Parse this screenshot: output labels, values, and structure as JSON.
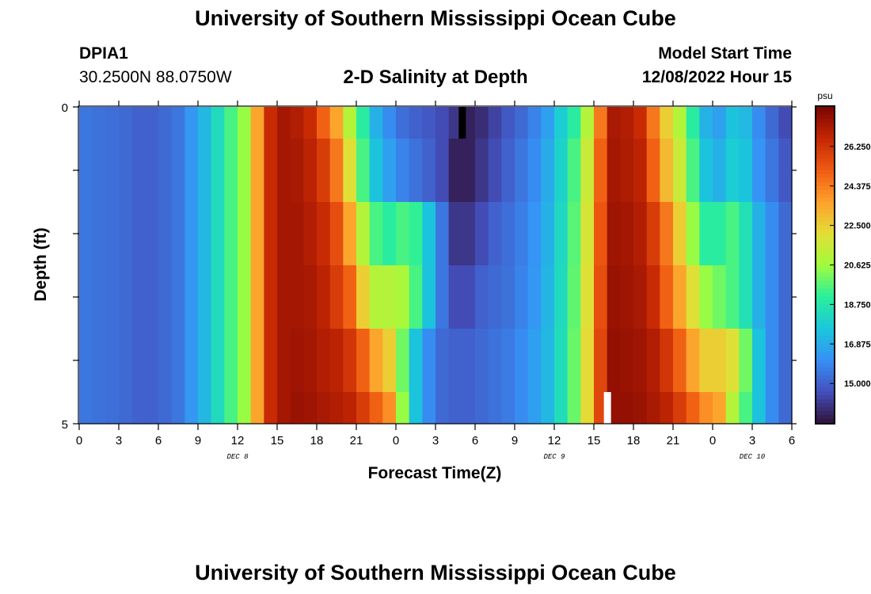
{
  "header": {
    "title": "University of Southern Mississippi Ocean Cube",
    "station": "DPIA1",
    "coords": "30.2500N  88.0750W",
    "subtitle": "2-D Salinity at Depth",
    "model_start_label": "Model Start Time",
    "model_start_value": "12/08/2022 Hour 15"
  },
  "footer": {
    "title": "University of Southern Mississippi Ocean Cube"
  },
  "chart_data": {
    "type": "heatmap",
    "title": "2-D Salinity at Depth",
    "xlabel": "Forecast Time(Z)",
    "ylabel": "Depth (ft)",
    "x_tick_labels": [
      "0",
      "3",
      "6",
      "9",
      "12",
      "15",
      "18",
      "21",
      "0",
      "3",
      "6",
      "9",
      "12",
      "15",
      "18",
      "21",
      "0",
      "3",
      "6"
    ],
    "x_range_hours": [
      0,
      54
    ],
    "day_labels": [
      {
        "label": "DEC 8",
        "hour": 12
      },
      {
        "label": "DEC 9",
        "hour": 36
      },
      {
        "label": "DEC 10",
        "hour": 51
      }
    ],
    "y_tick_labels": [
      "0",
      "5"
    ],
    "y_range": [
      0,
      5
    ],
    "colorbar": {
      "unit": "psu",
      "min": 13.125,
      "max": 28.125,
      "tick_labels": [
        "26.250",
        "24.375",
        "22.500",
        "20.625",
        "18.750",
        "16.875",
        "15.000"
      ],
      "tick_values": [
        26.25,
        24.375,
        22.5,
        20.625,
        18.75,
        16.875,
        15.0
      ]
    },
    "depth_rows": [
      {
        "depth_range": [
          0,
          0.5
        ],
        "values_by_hour": [
          15.5,
          15.4,
          15.3,
          15.2,
          15.0,
          15.0,
          15.2,
          15.5,
          16.3,
          17.2,
          18.3,
          19.5,
          20.5,
          23.5,
          26.5,
          27.3,
          27.0,
          26.5,
          25.0,
          23.5,
          21.0,
          19.0,
          17.0,
          16.0,
          15.3,
          15.0,
          14.8,
          14.5,
          14.0,
          13.5,
          13.8,
          14.3,
          14.8,
          15.2,
          15.8,
          16.5,
          17.8,
          19.0,
          21.0,
          24.5,
          27.2,
          27.0,
          26.5,
          24.5,
          22.5,
          21.0,
          19.0,
          17.0,
          16.5,
          17.5,
          17.2,
          16.0,
          15.2,
          14.5,
          14.0
        ]
      },
      {
        "depth_range": [
          0.5,
          1.5
        ],
        "values_by_hour": [
          15.5,
          15.4,
          15.3,
          15.2,
          15.0,
          15.0,
          15.2,
          15.5,
          16.3,
          17.2,
          18.3,
          19.5,
          20.5,
          23.5,
          26.5,
          27.3,
          27.2,
          26.8,
          26.0,
          24.5,
          22.0,
          19.5,
          17.5,
          16.5,
          15.8,
          15.4,
          15.0,
          14.5,
          13.5,
          13.5,
          14.0,
          14.5,
          15.0,
          15.5,
          16.0,
          16.8,
          18.0,
          19.5,
          21.5,
          25.0,
          27.3,
          27.1,
          26.8,
          25.0,
          23.0,
          21.5,
          19.5,
          17.5,
          17.0,
          17.8,
          17.5,
          16.2,
          15.5,
          14.8,
          14.2
        ]
      },
      {
        "depth_range": [
          1.5,
          2.5
        ],
        "values_by_hour": [
          15.5,
          15.4,
          15.3,
          15.2,
          15.0,
          15.0,
          15.2,
          15.5,
          16.3,
          17.2,
          18.3,
          19.5,
          20.5,
          23.5,
          26.5,
          27.3,
          27.3,
          27.0,
          26.5,
          25.5,
          23.5,
          21.0,
          19.5,
          19.0,
          19.5,
          19.2,
          17.5,
          15.5,
          14.0,
          14.0,
          14.5,
          15.0,
          15.3,
          15.7,
          16.2,
          17.0,
          18.2,
          19.7,
          21.8,
          25.3,
          27.4,
          27.3,
          27.0,
          26.0,
          24.5,
          22.5,
          20.5,
          19.0,
          19.0,
          19.5,
          18.5,
          17.0,
          16.0,
          15.2,
          14.5
        ]
      },
      {
        "depth_range": [
          2.5,
          3.5
        ],
        "values_by_hour": [
          15.5,
          15.4,
          15.3,
          15.2,
          15.0,
          15.0,
          15.2,
          15.5,
          16.3,
          17.2,
          18.3,
          19.5,
          20.5,
          23.5,
          26.5,
          27.3,
          27.3,
          27.2,
          26.8,
          26.0,
          25.0,
          22.5,
          21.0,
          21.0,
          20.8,
          19.5,
          17.5,
          15.5,
          14.5,
          14.5,
          15.0,
          15.2,
          15.4,
          15.8,
          16.3,
          17.1,
          18.3,
          19.8,
          22.0,
          25.5,
          27.5,
          27.4,
          27.2,
          26.5,
          25.0,
          23.5,
          22.0,
          20.5,
          20.0,
          19.5,
          18.5,
          17.0,
          16.0,
          15.2,
          14.8
        ]
      },
      {
        "depth_range": [
          3.5,
          4.5
        ],
        "values_by_hour": [
          15.5,
          15.4,
          15.3,
          15.2,
          15.0,
          15.0,
          15.2,
          15.5,
          16.3,
          17.2,
          18.3,
          19.5,
          20.5,
          23.5,
          26.5,
          27.3,
          27.4,
          27.3,
          27.0,
          26.8,
          26.2,
          25.0,
          23.5,
          22.5,
          20.0,
          17.5,
          16.0,
          15.2,
          15.0,
          15.0,
          15.2,
          15.4,
          15.6,
          16.0,
          16.5,
          17.2,
          18.4,
          19.9,
          22.2,
          25.7,
          27.6,
          27.5,
          27.4,
          27.0,
          26.2,
          25.0,
          23.5,
          22.5,
          22.5,
          22.0,
          20.0,
          17.5,
          16.0,
          15.2,
          14.8
        ]
      },
      {
        "depth_range": [
          4.5,
          5.0
        ],
        "values_by_hour": [
          15.5,
          15.4,
          15.3,
          15.2,
          15.0,
          15.0,
          15.2,
          15.5,
          16.3,
          17.2,
          18.3,
          19.5,
          20.5,
          23.5,
          26.5,
          27.3,
          27.5,
          27.4,
          27.2,
          27.0,
          26.8,
          26.0,
          25.0,
          24.0,
          20.5,
          17.5,
          16.0,
          15.2,
          15.0,
          15.0,
          15.2,
          15.4,
          15.6,
          16.0,
          16.5,
          17.2,
          18.4,
          19.9,
          22.2,
          25.7,
          27.6,
          27.6,
          27.5,
          27.2,
          26.8,
          26.0,
          25.0,
          24.0,
          23.5,
          21.0,
          19.5,
          17.5,
          16.0,
          15.2,
          14.8
        ]
      }
    ],
    "markers": [
      {
        "color": "#000000",
        "hour": 29,
        "depth_range": [
          0,
          0.5
        ]
      },
      {
        "color": "#ffffff",
        "hour": 40,
        "depth_range": [
          4.5,
          5.0
        ]
      }
    ]
  }
}
